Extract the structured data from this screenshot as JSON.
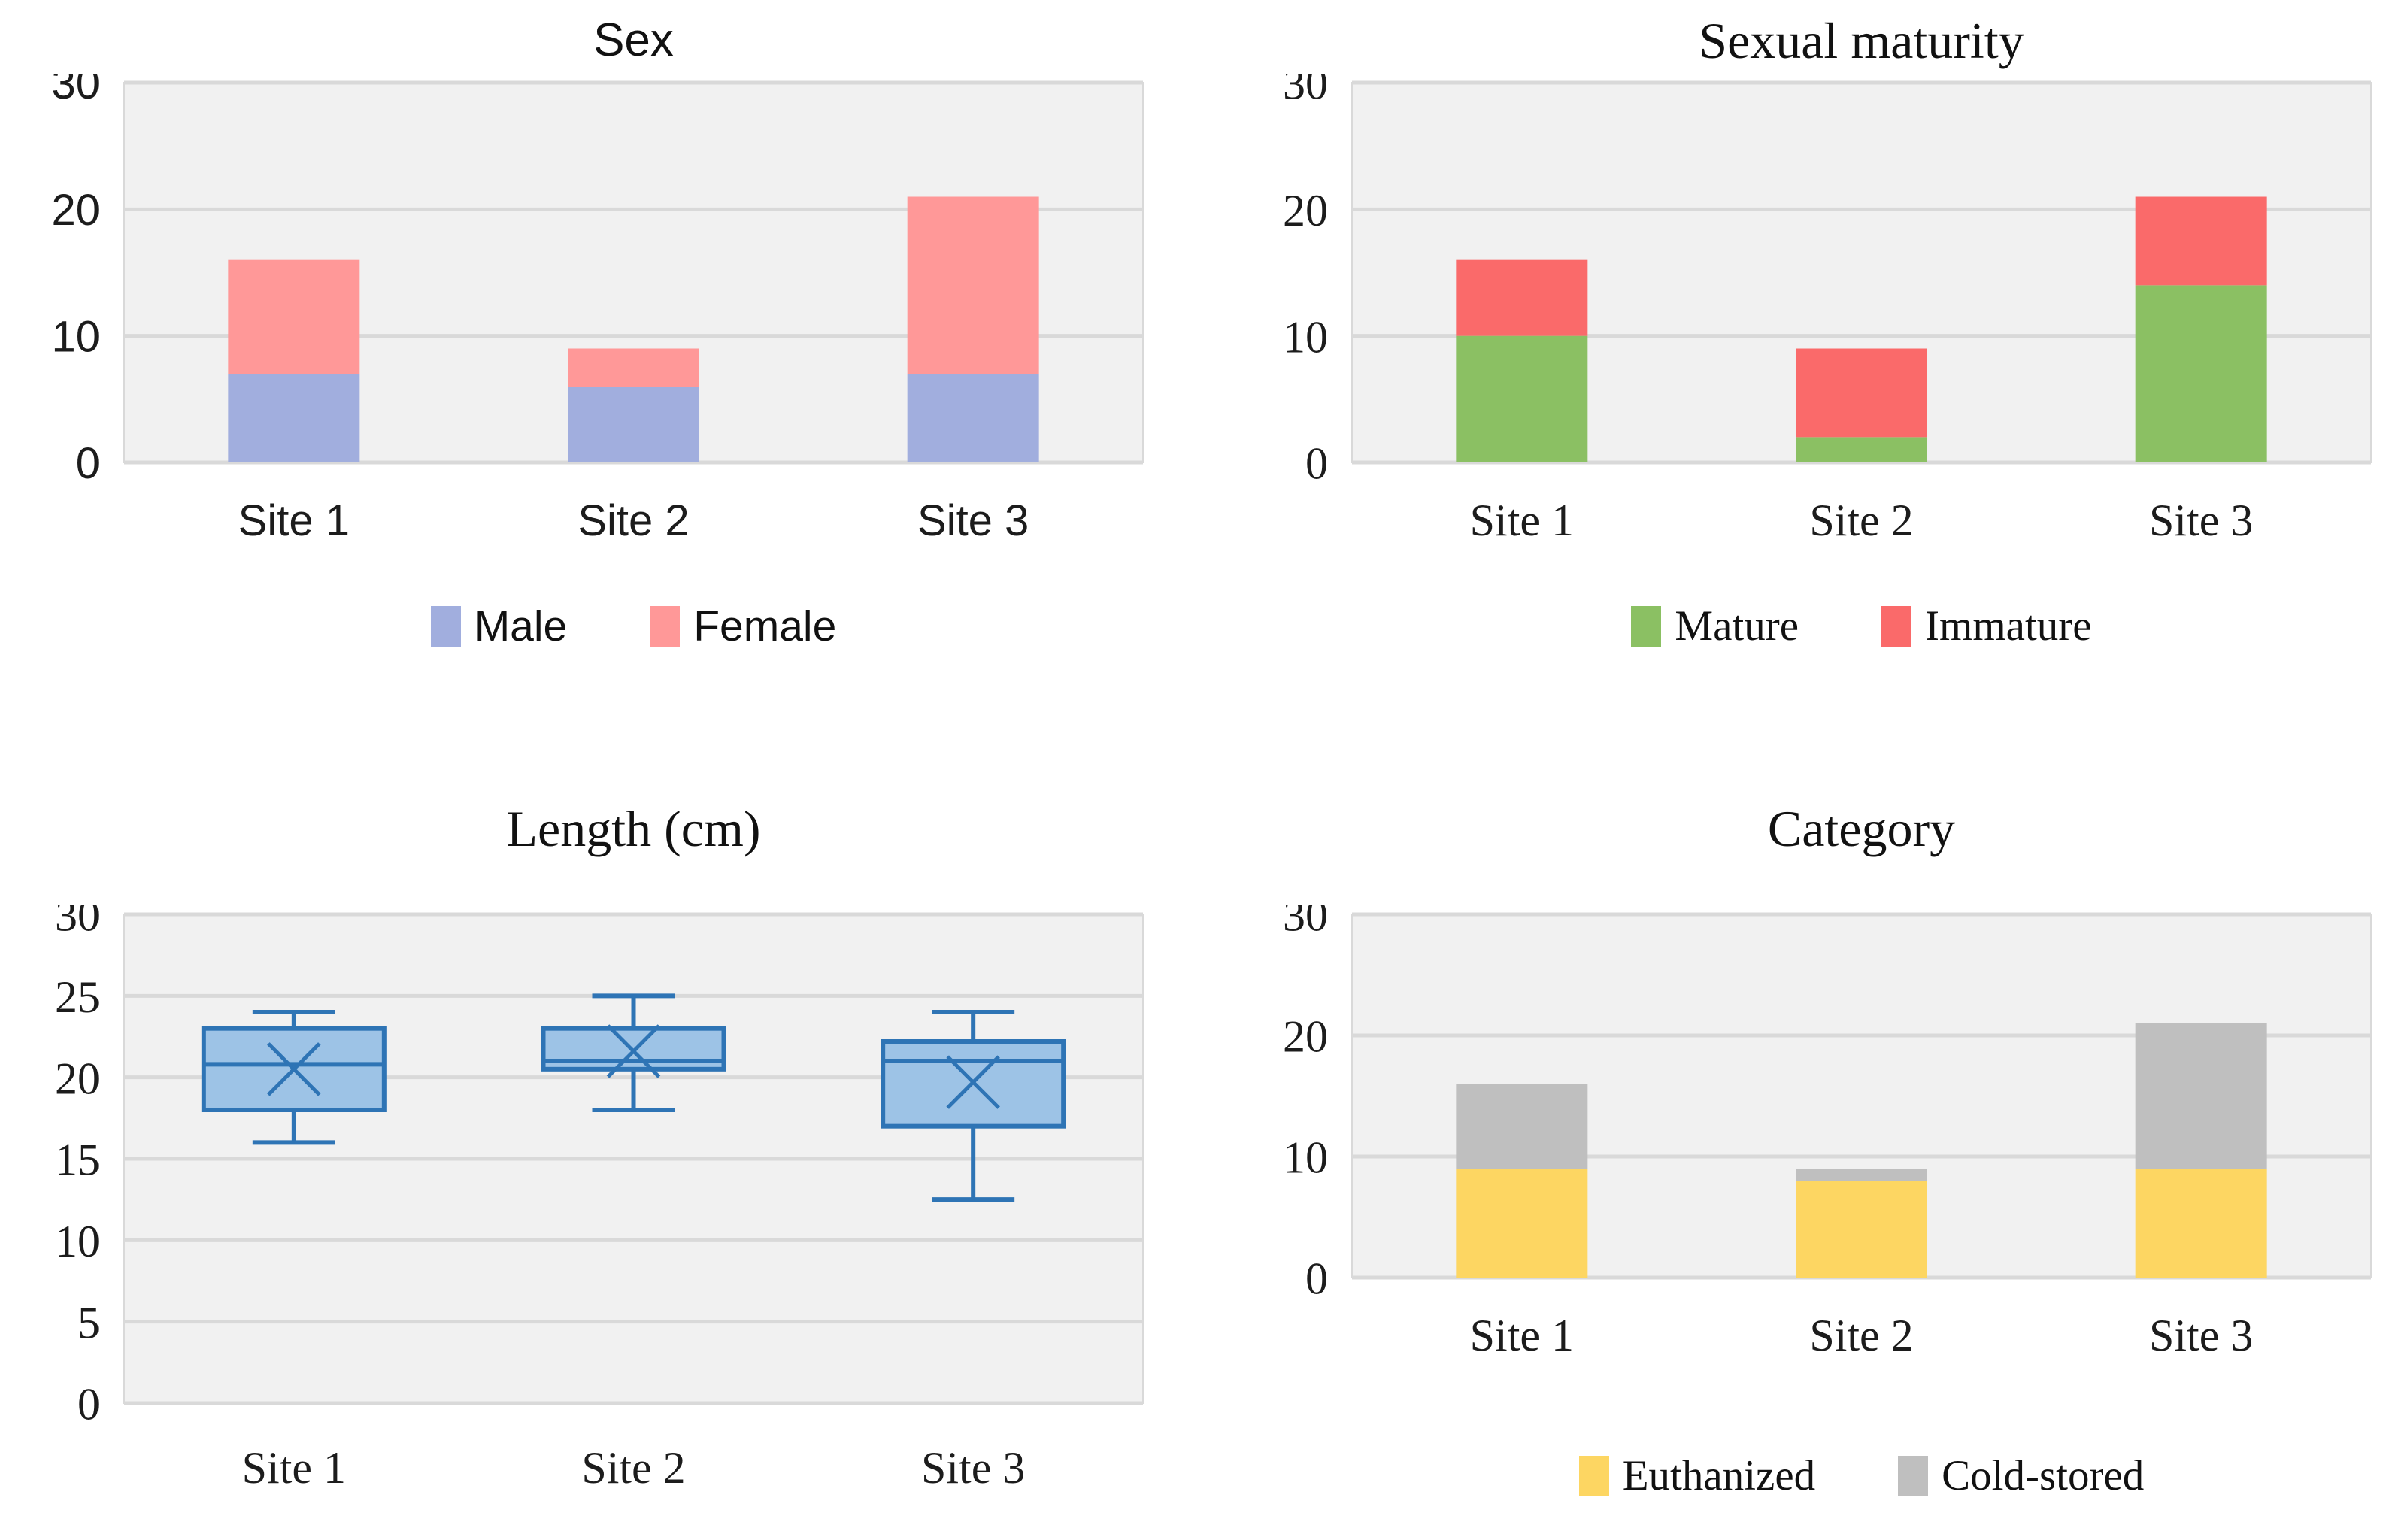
{
  "figure": {
    "background": "#ffffff",
    "plot_bg": "#f1f1f1",
    "gridline_color": "#d9d9d9",
    "text_color": "#111111"
  },
  "chart_data": [
    {
      "type": "bar",
      "stacked": true,
      "title": "Sex",
      "font": "sans",
      "categories": [
        "Site 1",
        "Site 2",
        "Site 3"
      ],
      "series": [
        {
          "name": "Male",
          "color": "#a1aede",
          "values": [
            7,
            6,
            7
          ]
        },
        {
          "name": "Female",
          "color": "#ff9898",
          "values": [
            9,
            3,
            14
          ]
        }
      ],
      "ylim": [
        0,
        30
      ],
      "yticks": [
        0,
        10,
        20,
        30
      ],
      "grid": true,
      "legend_position": "bottom"
    },
    {
      "type": "bar",
      "stacked": true,
      "title": "Sexual maturity",
      "font": "serif",
      "categories": [
        "Site 1",
        "Site 2",
        "Site 3"
      ],
      "series": [
        {
          "name": "Mature",
          "color": "#8bc063",
          "values": [
            10,
            2,
            14
          ]
        },
        {
          "name": "Immature",
          "color": "#fa6a6a",
          "values": [
            6,
            7,
            7
          ]
        }
      ],
      "ylim": [
        0,
        30
      ],
      "yticks": [
        0,
        10,
        20,
        30
      ],
      "grid": true,
      "legend_position": "bottom"
    },
    {
      "type": "box",
      "title": "Length (cm)",
      "font": "serif",
      "categories": [
        "Site 1",
        "Site 2",
        "Site 3"
      ],
      "boxes": [
        {
          "category": "Site 1",
          "min": 16,
          "q1": 18,
          "median": 20.8,
          "q3": 23,
          "max": 24,
          "mean": 20.5
        },
        {
          "category": "Site 2",
          "min": 18,
          "q1": 20.5,
          "median": 21,
          "q3": 23,
          "max": 25,
          "mean": 21.6
        },
        {
          "category": "Site 3",
          "min": 12.5,
          "q1": 17,
          "median": 21,
          "q3": 22.2,
          "max": 24,
          "mean": 19.7
        }
      ],
      "box_fill": "#9dc3e6",
      "box_stroke": "#2e74b5",
      "ylim": [
        0,
        30
      ],
      "yticks": [
        0,
        5,
        10,
        15,
        20,
        25,
        30
      ],
      "grid": true,
      "legend_position": "none"
    },
    {
      "type": "bar",
      "stacked": true,
      "title": "Category",
      "font": "serif",
      "categories": [
        "Site 1",
        "Site 2",
        "Site 3"
      ],
      "series": [
        {
          "name": "Euthanized",
          "color": "#fdd662",
          "values": [
            9,
            8,
            9
          ]
        },
        {
          "name": "Cold-stored",
          "color": "#bfbfbf",
          "values": [
            7,
            1,
            12
          ]
        }
      ],
      "ylim": [
        0,
        30
      ],
      "yticks": [
        0,
        10,
        20,
        30
      ],
      "grid": true,
      "legend_position": "bottom"
    }
  ]
}
